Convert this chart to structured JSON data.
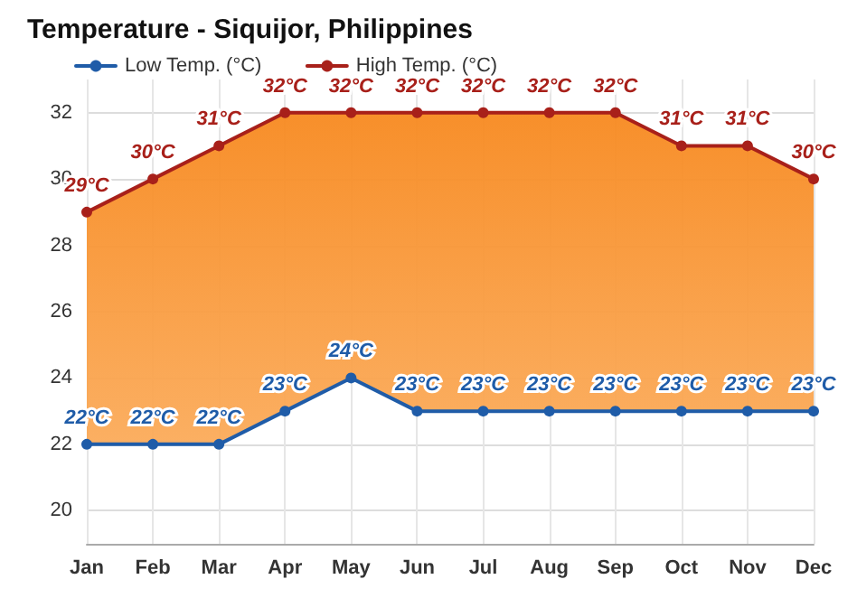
{
  "chart_data": {
    "type": "line",
    "title": "Temperature - Siquijor, Philippines",
    "categories": [
      "Jan",
      "Feb",
      "Mar",
      "Apr",
      "May",
      "Jun",
      "Jul",
      "Aug",
      "Sep",
      "Oct",
      "Nov",
      "Dec"
    ],
    "series": [
      {
        "name": "Low Temp. (°C)",
        "color": "#1f5ca8",
        "values": [
          22,
          22,
          22,
          23,
          24,
          23,
          23,
          23,
          23,
          23,
          23,
          23
        ],
        "value_labels": [
          "22°C",
          "22°C",
          "22°C",
          "23°C",
          "24°C",
          "23°C",
          "23°C",
          "23°C",
          "23°C",
          "23°C",
          "23°C",
          "23°C"
        ]
      },
      {
        "name": "High Temp. (°C)",
        "type": "area",
        "color": "#a8201a",
        "values": [
          29,
          30,
          31,
          32,
          32,
          32,
          32,
          32,
          32,
          31,
          31,
          30
        ],
        "value_labels": [
          "29°C",
          "30°C",
          "31°C",
          "32°C",
          "32°C",
          "32°C",
          "32°C",
          "32°C",
          "32°C",
          "31°C",
          "31°C",
          "30°C"
        ]
      }
    ],
    "ylim": [
      19,
      33
    ],
    "yticks": [
      20,
      22,
      24,
      26,
      28,
      30,
      32
    ],
    "grid": true,
    "legend": "top left",
    "marker": "circle",
    "line_style": "solid"
  }
}
